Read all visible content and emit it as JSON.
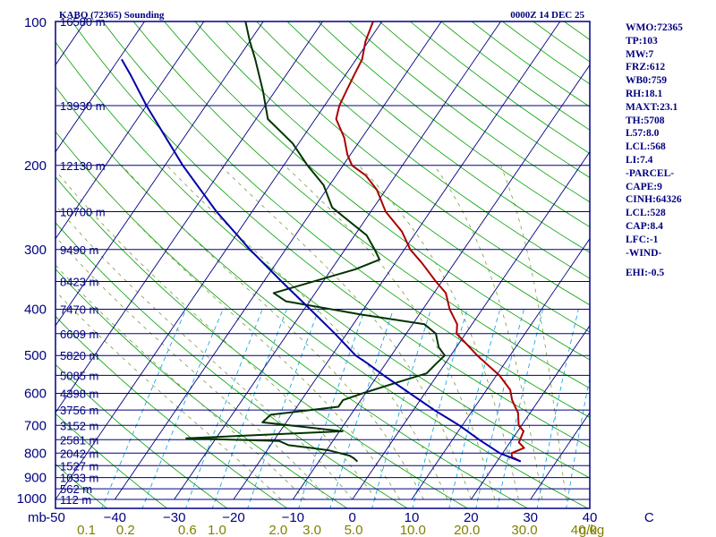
{
  "header": {
    "station_title": "KABQ (72365) Sounding",
    "valid_time": "0000Z 14 DEC 25"
  },
  "colors": {
    "frame": "#000080",
    "isobar": "#000080",
    "isotherm": "#000080",
    "dry_adiabat": "#00a000",
    "moist_adiabat": "#6b8e23",
    "mixing_ratio": "#00a0e0",
    "temperature": "#aa0000",
    "dewpoint": "#003300",
    "parcel": "#0000aa",
    "label": "#000080",
    "mixing_label": "#808000"
  },
  "indices": {
    "wmo": "WMO:72365",
    "tp": "TP:103",
    "mw": "MW:7",
    "frz": "FRZ:612",
    "wb0": "WB0:759",
    "rh": "RH:18.1",
    "maxt": "MAXT:23.1",
    "th": "TH:5708",
    "l57": "L57:8.0",
    "lcl": "LCL:568",
    "li": "LI:7.4",
    "parcel_header": "-PARCEL-",
    "cape": "CAPE:9",
    "cinh": "CINH:64326",
    "lcl2": "LCL:528",
    "cap": "CAP:8.4",
    "lfc": "LFC:-1",
    "wind_header": "-WIND-",
    "ehi": "EHI:-0.5"
  },
  "chart_data": {
    "type": "skew-t",
    "title": "KABQ (72365) Sounding",
    "subtitle": "0000Z 14 DEC 25",
    "pressure_range_mb": [
      1000,
      100
    ],
    "temperature_range_c": [
      -50,
      40
    ],
    "skew_c_per_decade": 55,
    "pressure_unit_label": "mb",
    "pressure_ticks": [
      {
        "p": 100,
        "label": "100"
      },
      {
        "p": 200,
        "label": "200"
      },
      {
        "p": 300,
        "label": "300"
      },
      {
        "p": 400,
        "label": "400"
      },
      {
        "p": 500,
        "label": "500"
      },
      {
        "p": 600,
        "label": "600"
      },
      {
        "p": 700,
        "label": "700"
      },
      {
        "p": 800,
        "label": "800"
      },
      {
        "p": 900,
        "label": "900"
      },
      {
        "p": 1000,
        "label": "1000"
      }
    ],
    "temperature_ticks": [
      {
        "t": -50,
        "label": "-50"
      },
      {
        "t": -40,
        "label": "−40"
      },
      {
        "t": -30,
        "label": "−30"
      },
      {
        "t": -20,
        "label": "−20"
      },
      {
        "t": -10,
        "label": "−10"
      },
      {
        "t": 0,
        "label": "0"
      },
      {
        "t": 10,
        "label": "10"
      },
      {
        "t": 20,
        "label": "20"
      },
      {
        "t": 30,
        "label": "30"
      },
      {
        "t": 40,
        "label": "40"
      },
      {
        "t": 50,
        "label": "C"
      }
    ],
    "mixing_ratio_unit": "g/kg",
    "mixing_ratio_labels": [
      {
        "t": -44.8,
        "label": "0.1"
      },
      {
        "t": -38.2,
        "label": "0.2"
      },
      {
        "t": -27.8,
        "label": "0.6"
      },
      {
        "t": -22.8,
        "label": "1.0"
      },
      {
        "t": -12.5,
        "label": "2.0"
      },
      {
        "t": -6.8,
        "label": "3.0"
      },
      {
        "t": 0.2,
        "label": "5.0"
      },
      {
        "t": 10.2,
        "label": "10.0"
      },
      {
        "t": 19.3,
        "label": "20.0"
      },
      {
        "t": 29.0,
        "label": "30.0"
      },
      {
        "t": 39.0,
        "label": "40.0"
      }
    ],
    "height_labels": [
      {
        "p": 100,
        "label": "16580 m"
      },
      {
        "p": 150,
        "label": "13930 m"
      },
      {
        "p": 200,
        "label": "12130 m"
      },
      {
        "p": 250,
        "label": "10700 m"
      },
      {
        "p": 300,
        "label": "9490 m"
      },
      {
        "p": 350,
        "label": "8423 m"
      },
      {
        "p": 400,
        "label": "7470 m"
      },
      {
        "p": 450,
        "label": "6609 m"
      },
      {
        "p": 500,
        "label": "5820 m"
      },
      {
        "p": 550,
        "label": "5085 m"
      },
      {
        "p": 600,
        "label": "4398 m"
      },
      {
        "p": 650,
        "label": "3756 m"
      },
      {
        "p": 700,
        "label": "3152 m"
      },
      {
        "p": 750,
        "label": "2581 m"
      },
      {
        "p": 800,
        "label": "2042 m"
      },
      {
        "p": 850,
        "label": "1527 m"
      },
      {
        "p": 900,
        "label": "1033 m"
      },
      {
        "p": 950,
        "label": "562 m"
      },
      {
        "p": 1000,
        "label": "112 m"
      }
    ],
    "isobars_mb": [
      100,
      150,
      200,
      250,
      300,
      350,
      400,
      450,
      500,
      550,
      600,
      650,
      700,
      750,
      800,
      850,
      900,
      950,
      1000
    ],
    "series": [
      {
        "name": "Temperature",
        "points": [
          [
            833,
            24.0
          ],
          [
            815,
            22.0
          ],
          [
            800,
            21.5
          ],
          [
            780,
            23.0
          ],
          [
            760,
            21.5
          ],
          [
            720,
            21.0
          ],
          [
            700,
            19.5
          ],
          [
            660,
            18.0
          ],
          [
            620,
            15.5
          ],
          [
            590,
            14.0
          ],
          [
            550,
            10.5
          ],
          [
            500,
            4.5
          ],
          [
            470,
            1.0
          ],
          [
            450,
            -1.5
          ],
          [
            430,
            -2.5
          ],
          [
            400,
            -5.5
          ],
          [
            370,
            -8.0
          ],
          [
            350,
            -11.0
          ],
          [
            320,
            -15.5
          ],
          [
            300,
            -19.0
          ],
          [
            275,
            -22.5
          ],
          [
            250,
            -27.5
          ],
          [
            225,
            -31.5
          ],
          [
            210,
            -35.0
          ],
          [
            200,
            -38.5
          ],
          [
            190,
            -40.5
          ],
          [
            175,
            -43.0
          ],
          [
            160,
            -46.5
          ],
          [
            150,
            -47.5
          ],
          [
            140,
            -48.0
          ],
          [
            130,
            -48.5
          ],
          [
            120,
            -49.0
          ],
          [
            110,
            -50.5
          ],
          [
            100,
            -51.5
          ]
        ]
      },
      {
        "name": "Dewpoint",
        "points": [
          [
            833,
            -3.5
          ],
          [
            820,
            -4.5
          ],
          [
            810,
            -5.5
          ],
          [
            790,
            -9.5
          ],
          [
            780,
            -13.0
          ],
          [
            770,
            -17.0
          ],
          [
            755,
            -19.0
          ],
          [
            745,
            -35.0
          ],
          [
            720,
            -9.5
          ],
          [
            690,
            -24.0
          ],
          [
            665,
            -23.5
          ],
          [
            640,
            -13.0
          ],
          [
            620,
            -13.0
          ],
          [
            600,
            -10.5
          ],
          [
            570,
            -6.0
          ],
          [
            545,
            -2.0
          ],
          [
            520,
            -1.5
          ],
          [
            500,
            -1.0
          ],
          [
            480,
            -3.0
          ],
          [
            450,
            -5.0
          ],
          [
            430,
            -8.0
          ],
          [
            410,
            -20.0
          ],
          [
            385,
            -34.0
          ],
          [
            370,
            -37.0
          ],
          [
            355,
            -33.0
          ],
          [
            330,
            -26.0
          ],
          [
            315,
            -23.0
          ],
          [
            300,
            -25.0
          ],
          [
            280,
            -28.0
          ],
          [
            260,
            -33.0
          ],
          [
            245,
            -37.0
          ],
          [
            220,
            -41.0
          ],
          [
            200,
            -46.0
          ],
          [
            180,
            -51.0
          ],
          [
            160,
            -58.0
          ],
          [
            140,
            -62.0
          ],
          [
            120,
            -67.0
          ],
          [
            110,
            -70.0
          ],
          [
            100,
            -73.0
          ]
        ]
      },
      {
        "name": "Parcel",
        "points": [
          [
            833,
            24.0
          ],
          [
            800,
            19.5
          ],
          [
            750,
            14.5
          ],
          [
            700,
            9.5
          ],
          [
            650,
            3.5
          ],
          [
            600,
            -2.5
          ],
          [
            550,
            -9.0
          ],
          [
            520,
            -13.0
          ],
          [
            500,
            -16.0
          ],
          [
            450,
            -22.0
          ],
          [
            400,
            -29.0
          ],
          [
            350,
            -37.0
          ],
          [
            300,
            -46.0
          ],
          [
            250,
            -56.0
          ],
          [
            200,
            -67.0
          ],
          [
            150,
            -80.0
          ],
          [
            130,
            -86.0
          ],
          [
            120,
            -89.5
          ]
        ]
      }
    ]
  }
}
